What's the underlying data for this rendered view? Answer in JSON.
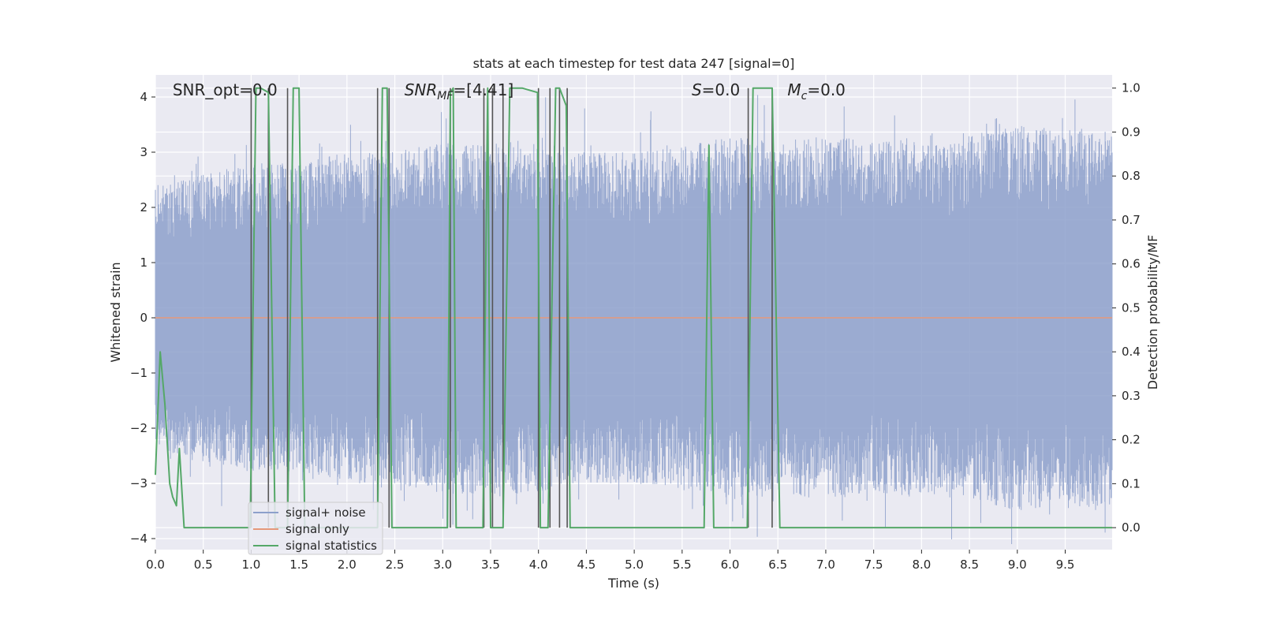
{
  "chart_data": {
    "type": "line",
    "title": "stats at each timestep for test data 247 [signal=0]",
    "xlabel": "Time (s)",
    "ylabel_left": "Whitened strain",
    "ylabel_right": "Detection probability/MF",
    "xlim": [
      0,
      9.99
    ],
    "ylim_left": [
      -4.2,
      4.4
    ],
    "ylim_right": [
      -0.05,
      1.03
    ],
    "x_ticks": [
      0.0,
      0.5,
      1.0,
      1.5,
      2.0,
      2.5,
      3.0,
      3.5,
      4.0,
      4.5,
      5.0,
      5.5,
      6.0,
      6.5,
      7.0,
      7.5,
      8.0,
      8.5,
      9.0,
      9.5
    ],
    "x_tick_labels": [
      "0.0",
      "0.5",
      "1.0",
      "1.5",
      "2.0",
      "2.5",
      "3.0",
      "3.5",
      "4.0",
      "4.5",
      "5.0",
      "5.5",
      "6.0",
      "6.5",
      "7.0",
      "7.5",
      "8.0",
      "8.5",
      "9.0",
      "9.5"
    ],
    "y_ticks_left": [
      -4,
      -3,
      -2,
      -1,
      0,
      1,
      2,
      3,
      4
    ],
    "y_tick_labels_left": [
      "−4",
      "−3",
      "−2",
      "−1",
      "0",
      "1",
      "2",
      "3",
      "4"
    ],
    "y_ticks_right": [
      0.0,
      0.1,
      0.2,
      0.3,
      0.4,
      0.5,
      0.6,
      0.7,
      0.8,
      0.9,
      1.0
    ],
    "y_tick_labels_right": [
      "0.0",
      "0.1",
      "0.2",
      "0.3",
      "0.4",
      "0.5",
      "0.6",
      "0.7",
      "0.8",
      "0.9",
      "1.0"
    ],
    "grid": true,
    "legend_position": "lower-left",
    "annotations": {
      "snr_opt": {
        "text": "SNR_opt=0.0",
        "x": 0.18
      },
      "snr_mf": {
        "base": "SNR",
        "sub": "MF",
        "rest": "=[4.41]",
        "x": 2.6
      },
      "s": {
        "italic": "S",
        "rest": "=0.0",
        "x": 5.6
      },
      "mc": {
        "base": "M",
        "sub": "c",
        "rest": "=0.0",
        "x": 6.6
      }
    },
    "series": [
      {
        "name": "signal+ noise",
        "color": "#8da0cb",
        "axis": "left",
        "style": "dense noise",
        "envelope_positive": [
          [
            0.0,
            2.4
          ],
          [
            0.5,
            2.6
          ],
          [
            1.0,
            2.8
          ],
          [
            1.5,
            2.8
          ],
          [
            2.0,
            3.0
          ],
          [
            2.5,
            3.0
          ],
          [
            3.0,
            3.2
          ],
          [
            3.5,
            3.2
          ],
          [
            4.0,
            3.2
          ],
          [
            4.5,
            3.0
          ],
          [
            5.0,
            3.0
          ],
          [
            5.5,
            3.1
          ],
          [
            6.0,
            3.3
          ],
          [
            6.5,
            3.2
          ],
          [
            7.0,
            3.3
          ],
          [
            7.5,
            3.2
          ],
          [
            8.0,
            3.3
          ],
          [
            8.5,
            3.3
          ],
          [
            9.0,
            3.5
          ],
          [
            9.5,
            3.4
          ],
          [
            9.99,
            3.5
          ]
        ],
        "envelope_negative": [
          [
            0.0,
            -2.4
          ],
          [
            0.5,
            -2.6
          ],
          [
            1.0,
            -2.8
          ],
          [
            1.5,
            -2.8
          ],
          [
            2.0,
            -3.0
          ],
          [
            2.5,
            -3.0
          ],
          [
            3.0,
            -3.2
          ],
          [
            3.5,
            -3.2
          ],
          [
            4.0,
            -3.2
          ],
          [
            4.5,
            -3.0
          ],
          [
            5.0,
            -3.0
          ],
          [
            5.5,
            -3.1
          ],
          [
            6.0,
            -3.3
          ],
          [
            6.5,
            -3.2
          ],
          [
            7.0,
            -3.3
          ],
          [
            7.5,
            -3.2
          ],
          [
            8.0,
            -3.3
          ],
          [
            8.5,
            -3.3
          ],
          [
            9.0,
            -3.5
          ],
          [
            9.5,
            -3.4
          ],
          [
            9.99,
            -3.5
          ]
        ]
      },
      {
        "name": "signal only",
        "color": "#e5987a",
        "axis": "left",
        "x": [
          0.0,
          9.99
        ],
        "y": [
          0.0,
          0.0
        ]
      },
      {
        "name": "signal statistics",
        "color": "#55a868",
        "axis": "right",
        "x": [
          0.0,
          0.05,
          0.1,
          0.15,
          0.18,
          0.22,
          0.25,
          0.3,
          0.99,
          1.05,
          1.1,
          1.18,
          1.25,
          1.38,
          1.44,
          1.5,
          1.56,
          2.32,
          2.37,
          2.42,
          2.47,
          2.52,
          3.05,
          3.08,
          3.11,
          3.14,
          3.2,
          3.42,
          3.47,
          3.5,
          3.53,
          3.57,
          3.63,
          3.7,
          3.77,
          3.83,
          3.99,
          4.02,
          4.1,
          4.18,
          4.22,
          4.29,
          4.33,
          4.4,
          5.55,
          5.6,
          5.73,
          5.78,
          5.83,
          5.88,
          6.18,
          6.24,
          6.44,
          6.52,
          9.99
        ],
        "y": [
          0.12,
          0.4,
          0.28,
          0.1,
          0.07,
          0.05,
          0.18,
          0.0,
          0.0,
          1.0,
          1.0,
          0.99,
          0.0,
          0.0,
          1.0,
          1.0,
          0.0,
          0.0,
          1.0,
          1.0,
          0.0,
          0.0,
          0.0,
          0.99,
          1.0,
          0.0,
          0.0,
          0.0,
          1.0,
          0.0,
          0.0,
          0.0,
          0.0,
          1.0,
          1.0,
          1.0,
          0.99,
          0.0,
          0.0,
          1.0,
          1.0,
          0.96,
          0.0,
          0.0,
          0.0,
          0.0,
          0.0,
          0.87,
          0.0,
          0.0,
          0.0,
          1.0,
          1.0,
          0.0,
          0.0
        ]
      }
    ],
    "vertical_markers": {
      "color": "#555555",
      "x": [
        1.0,
        1.18,
        1.38,
        2.32,
        2.44,
        3.08,
        3.43,
        3.52,
        3.63,
        4.0,
        4.12,
        4.22,
        4.3,
        6.19,
        6.44
      ]
    }
  }
}
